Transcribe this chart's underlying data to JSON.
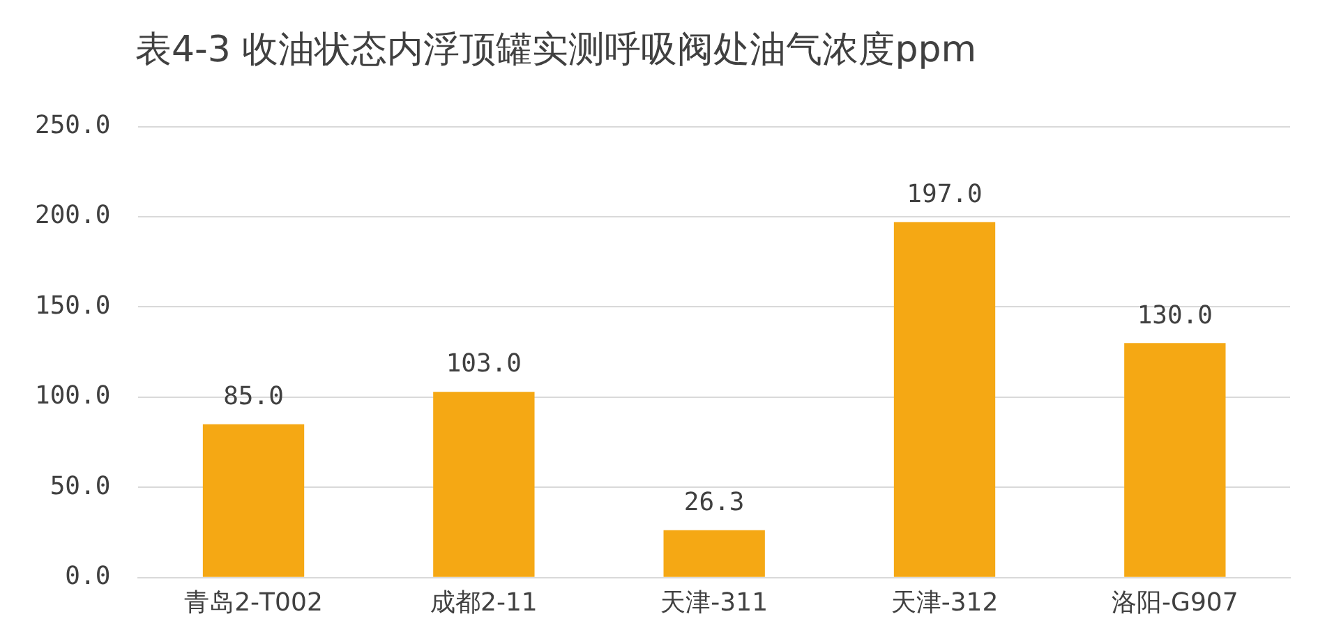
{
  "chart_data": {
    "type": "bar",
    "title": "表4-3 收油状态内浮顶罐实测呼吸阀处油气浓度ppm",
    "categories": [
      "青岛2-T002",
      "成都2-11",
      "天津-311",
      "天津-312",
      "洛阳-G907"
    ],
    "values": [
      85.0,
      103.0,
      26.3,
      197.0,
      130.0
    ],
    "value_labels": [
      "85.0",
      "103.0",
      "26.3",
      "197.0",
      "130.0"
    ],
    "color": "#f5a814",
    "ylim": [
      0,
      250
    ],
    "yticks": [
      {
        "value": 0,
        "label": "0.0"
      },
      {
        "value": 50,
        "label": "50.0"
      },
      {
        "value": 100,
        "label": "100.0"
      },
      {
        "value": 150,
        "label": "150.0"
      },
      {
        "value": 200,
        "label": "200.0"
      },
      {
        "value": 250,
        "label": "250.0"
      }
    ],
    "grid": "y"
  }
}
